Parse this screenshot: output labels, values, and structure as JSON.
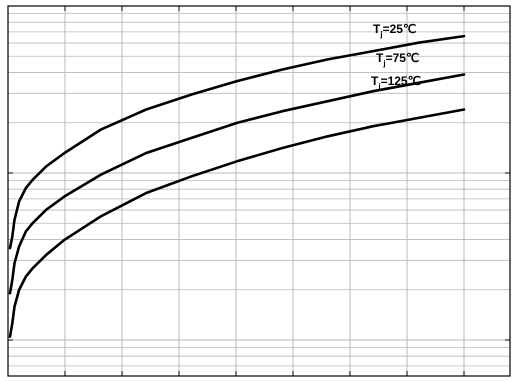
{
  "chart_data": {
    "type": "line",
    "title": "",
    "xlabel": "",
    "ylabel": "",
    "y_scale": "log",
    "grid": true,
    "legend": "none",
    "series": [
      {
        "name": "Tj=25℃",
        "label_main": "T",
        "label_sub": "j",
        "label_rest": "=25℃",
        "x": [
          0.0,
          0.005,
          0.01,
          0.02,
          0.035,
          0.05,
          0.08,
          0.12,
          0.2,
          0.3,
          0.4,
          0.5,
          0.6,
          0.7,
          0.8,
          0.9,
          1.0
        ],
        "y": [
          0.55,
          0.62,
          0.72,
          0.83,
          0.91,
          0.96,
          1.04,
          1.12,
          1.26,
          1.38,
          1.47,
          1.55,
          1.62,
          1.68,
          1.73,
          1.78,
          1.82
        ]
      },
      {
        "name": "Tj=75℃",
        "label_main": "T",
        "label_sub": "j",
        "label_rest": "=75℃",
        "x": [
          0.0,
          0.005,
          0.01,
          0.02,
          0.035,
          0.05,
          0.08,
          0.12,
          0.2,
          0.3,
          0.4,
          0.5,
          0.6,
          0.7,
          0.8,
          0.9,
          1.0
        ],
        "y": [
          0.28,
          0.36,
          0.46,
          0.56,
          0.65,
          0.7,
          0.78,
          0.86,
          0.99,
          1.12,
          1.21,
          1.3,
          1.37,
          1.43,
          1.49,
          1.54,
          1.59
        ]
      },
      {
        "name": "Tj=125℃",
        "label_main": "T",
        "label_sub": "j",
        "label_rest": "=125℃",
        "x": [
          0.0,
          0.005,
          0.01,
          0.02,
          0.035,
          0.05,
          0.08,
          0.12,
          0.2,
          0.3,
          0.4,
          0.5,
          0.6,
          0.7,
          0.8,
          0.9,
          1.0
        ],
        "y": [
          0.02,
          0.1,
          0.2,
          0.3,
          0.38,
          0.43,
          0.51,
          0.6,
          0.74,
          0.88,
          0.98,
          1.07,
          1.15,
          1.22,
          1.28,
          1.33,
          1.38
        ]
      }
    ]
  },
  "colors": {
    "line": "#000000",
    "grid": "#b8b8b8",
    "axis": "#000000"
  }
}
